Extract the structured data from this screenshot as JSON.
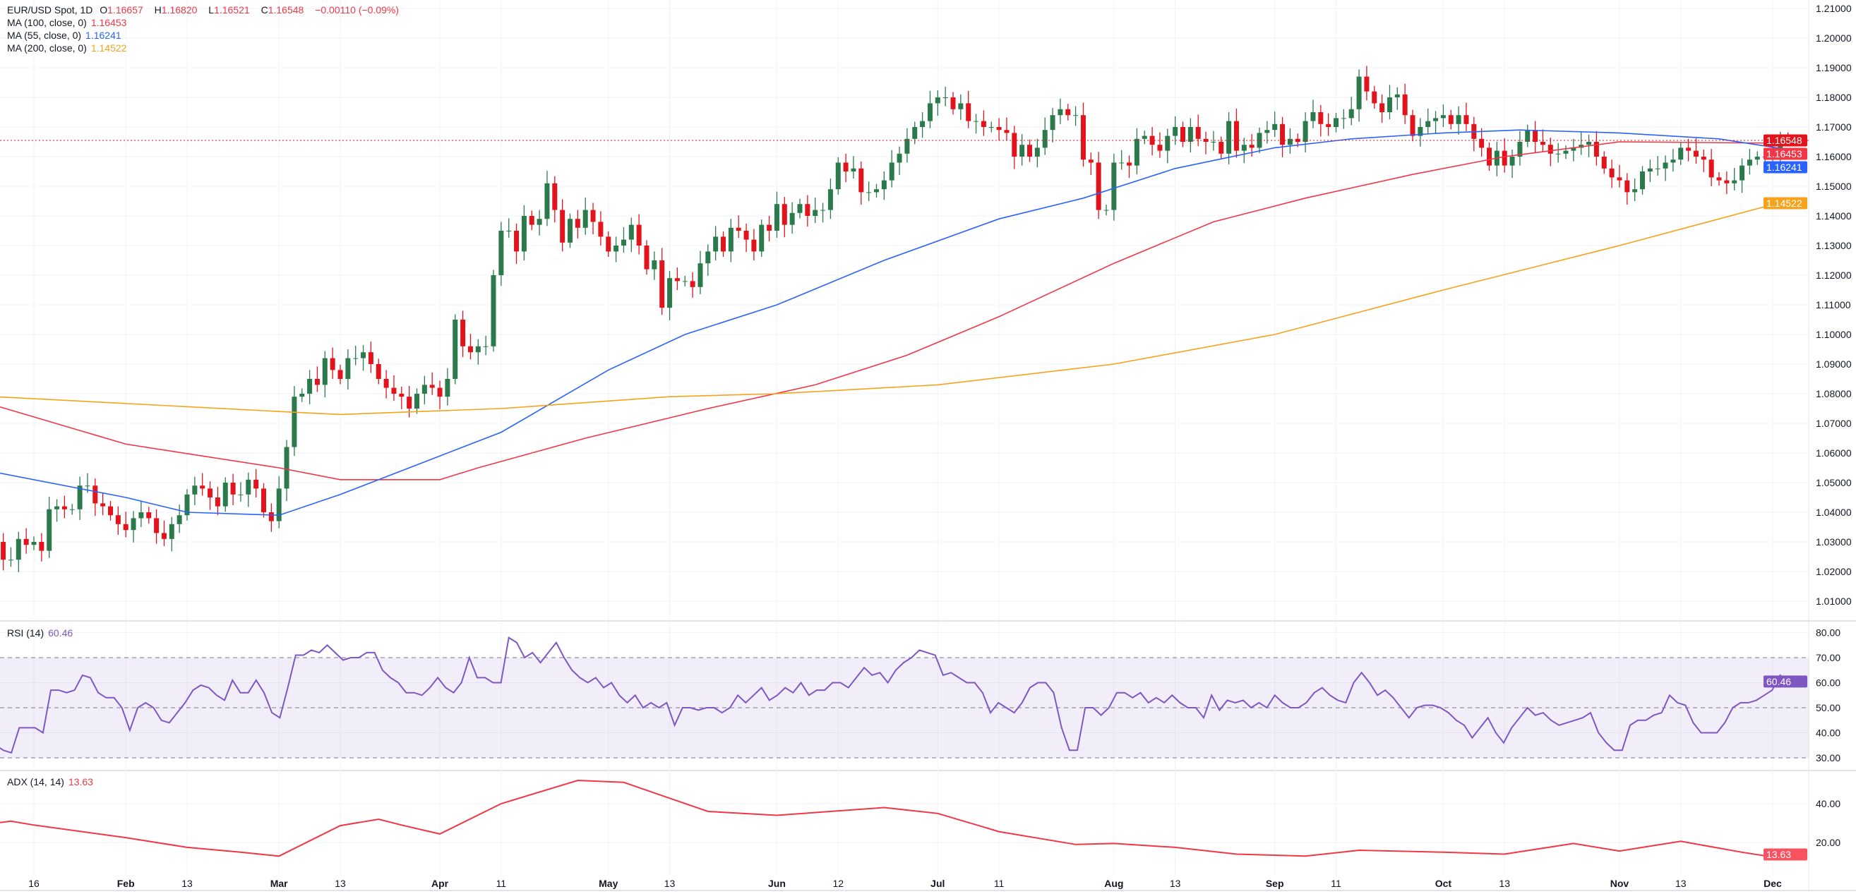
{
  "legend": {
    "symbol": "EUR/USD Spot, 1D",
    "o_label": "O",
    "o": "1.16657",
    "h_label": "H",
    "h": "1.16820",
    "l_label": "L",
    "l": "1.16521",
    "c_label": "C",
    "c": "1.16548",
    "change": "−0.00110 (−0.09%)",
    "ma100_label": "MA (100, close, 0)",
    "ma100": "1.16453",
    "ma55_label": "MA (55, close, 0)",
    "ma55": "1.16241",
    "ma200_label": "MA (200, close, 0)",
    "ma200": "1.14522",
    "rsi_label": "RSI (14)",
    "rsi": "60.46",
    "adx_label": "ADX (14, 14)",
    "adx": "13.63"
  },
  "colors": {
    "up": "#2b7a4b",
    "down": "#e3131b",
    "ma100": "#f23645",
    "ma55": "#2962ff",
    "ma200": "#f7a21b",
    "rsi": "#7e57c2",
    "adx": "#f23645",
    "last": "#e3131b"
  },
  "chart_data": [
    {
      "type": "candlestick",
      "title": "EUR/USD Spot, 1D",
      "start_date": "2025-01-09",
      "last_bar": {
        "open": 1.16657,
        "high": 1.1682,
        "low": 1.16521,
        "close": 1.16548
      },
      "first_open": 1.028,
      "close": [
        1.03,
        1.024,
        1.024,
        1.031,
        1.029,
        1.03,
        1.027,
        1.041,
        1.042,
        1.041,
        1.041,
        1.049,
        1.049,
        1.043,
        1.042,
        1.039,
        1.036,
        1.034,
        1.038,
        1.04,
        1.038,
        1.033,
        1.031,
        1.036,
        1.039,
        1.046,
        1.049,
        1.048,
        1.045,
        1.042,
        1.05,
        1.046,
        1.046,
        1.051,
        1.048,
        1.04,
        1.037,
        1.048,
        1.062,
        1.079,
        1.08,
        1.085,
        1.083,
        1.092,
        1.088,
        1.085,
        1.092,
        1.092,
        1.094,
        1.09,
        1.085,
        1.082,
        1.08,
        1.079,
        1.075,
        1.08,
        1.083,
        1.082,
        1.079,
        1.085,
        1.105,
        1.096,
        1.094,
        1.096,
        1.096,
        1.12,
        1.135,
        1.135,
        1.128,
        1.14,
        1.137,
        1.139,
        1.151,
        1.142,
        1.131,
        1.139,
        1.136,
        1.142,
        1.138,
        1.133,
        1.128,
        1.13,
        1.132,
        1.137,
        1.13,
        1.122,
        1.125,
        1.109,
        1.119,
        1.118,
        1.118,
        1.116,
        1.124,
        1.128,
        1.133,
        1.128,
        1.136,
        1.135,
        1.132,
        1.128,
        1.137,
        1.135,
        1.144,
        1.137,
        1.141,
        1.144,
        1.14,
        1.142,
        1.142,
        1.149,
        1.158,
        1.155,
        1.156,
        1.148,
        1.148,
        1.149,
        1.152,
        1.158,
        1.161,
        1.166,
        1.17,
        1.172,
        1.178,
        1.18,
        1.18,
        1.176,
        1.178,
        1.172,
        1.172,
        1.17,
        1.17,
        1.169,
        1.168,
        1.16,
        1.164,
        1.16,
        1.163,
        1.169,
        1.174,
        1.176,
        1.174,
        1.174,
        1.159,
        1.158,
        1.142,
        1.142,
        1.158,
        1.158,
        1.157,
        1.166,
        1.167,
        1.164,
        1.162,
        1.167,
        1.17,
        1.165,
        1.17,
        1.166,
        1.165,
        1.165,
        1.161,
        1.172,
        1.162,
        1.164,
        1.163,
        1.168,
        1.169,
        1.171,
        1.164,
        1.166,
        1.165,
        1.172,
        1.175,
        1.171,
        1.17,
        1.173,
        1.173,
        1.176,
        1.187,
        1.182,
        1.178,
        1.175,
        1.18,
        1.181,
        1.174,
        1.167,
        1.17,
        1.172,
        1.173,
        1.174,
        1.171,
        1.174,
        1.171,
        1.166,
        1.163,
        1.157,
        1.162,
        1.157,
        1.16,
        1.165,
        1.169,
        1.165,
        1.164,
        1.161,
        1.161,
        1.162,
        1.163,
        1.164,
        1.165,
        1.16,
        1.156,
        1.153,
        1.152,
        1.148,
        1.149,
        1.155,
        1.156,
        1.156,
        1.158,
        1.159,
        1.163,
        1.162,
        1.16,
        1.159,
        1.153,
        1.152,
        1.151,
        1.152,
        1.157,
        1.159,
        1.16,
        1.16,
        1.161,
        1.166,
        1.16548
      ],
      "ma": [
        {
          "name": "MA 100",
          "color_key": "ma100",
          "points": [
            [
              "2025-01-09",
              1.076
            ],
            [
              "2025-02-03",
              1.063
            ],
            [
              "2025-03-03",
              1.055
            ],
            [
              "2025-03-13",
              1.051
            ],
            [
              "2025-04-01",
              1.051
            ],
            [
              "2025-04-08",
              1.055
            ],
            [
              "2025-04-28",
              1.065
            ],
            [
              "2025-05-20",
              1.075
            ],
            [
              "2025-06-09",
              1.083
            ],
            [
              "2025-06-25",
              1.093
            ],
            [
              "2025-07-11",
              1.106
            ],
            [
              "2025-08-01",
              1.124
            ],
            [
              "2025-08-20",
              1.138
            ],
            [
              "2025-09-05",
              1.146
            ],
            [
              "2025-09-25",
              1.154
            ],
            [
              "2025-10-13",
              1.16
            ],
            [
              "2025-11-03",
              1.165
            ],
            [
              "2025-12-03",
              1.16453
            ]
          ]
        },
        {
          "name": "MA 55",
          "color_key": "ma55",
          "points": [
            [
              "2025-01-09",
              1.0535
            ],
            [
              "2025-02-03",
              1.045
            ],
            [
              "2025-02-13",
              1.04
            ],
            [
              "2025-03-03",
              1.039
            ],
            [
              "2025-03-13",
              1.046
            ],
            [
              "2025-04-01",
              1.059
            ],
            [
              "2025-04-11",
              1.067
            ],
            [
              "2025-05-01",
              1.088
            ],
            [
              "2025-05-15",
              1.1
            ],
            [
              "2025-06-02",
              1.11
            ],
            [
              "2025-06-20",
              1.125
            ],
            [
              "2025-07-11",
              1.139
            ],
            [
              "2025-07-28",
              1.146
            ],
            [
              "2025-08-13",
              1.156
            ],
            [
              "2025-09-01",
              1.163
            ],
            [
              "2025-09-15",
              1.166
            ],
            [
              "2025-10-01",
              1.168
            ],
            [
              "2025-10-15",
              1.169
            ],
            [
              "2025-11-03",
              1.168
            ],
            [
              "2025-11-20",
              1.166
            ],
            [
              "2025-12-03",
              1.16241
            ]
          ]
        },
        {
          "name": "MA 200",
          "color_key": "ma200",
          "points": [
            [
              "2025-01-09",
              1.079
            ],
            [
              "2025-03-03",
              1.074
            ],
            [
              "2025-03-13",
              1.073
            ],
            [
              "2025-04-11",
              1.075
            ],
            [
              "2025-05-13",
              1.079
            ],
            [
              "2025-06-02",
              1.08
            ],
            [
              "2025-07-01",
              1.083
            ],
            [
              "2025-08-01",
              1.09
            ],
            [
              "2025-09-01",
              1.1
            ],
            [
              "2025-10-01",
              1.115
            ],
            [
              "2025-11-03",
              1.13
            ],
            [
              "2025-12-03",
              1.14522
            ]
          ]
        }
      ],
      "yticks": [
        1.01,
        1.02,
        1.03,
        1.04,
        1.05,
        1.06,
        1.07,
        1.08,
        1.09,
        1.1,
        1.11,
        1.12,
        1.13,
        1.14,
        1.15,
        1.16,
        1.17,
        1.18,
        1.19,
        1.2,
        1.21
      ],
      "ylim": [
        1.01,
        1.21
      ],
      "badges": [
        {
          "key": "c",
          "color_key": "last",
          "value": 1.16548
        },
        {
          "key": "ma100",
          "color_key": "ma100",
          "value": 1.16453
        },
        {
          "key": "ma55",
          "color_key": "ma55",
          "value": 1.16241
        },
        {
          "key": "ma200",
          "color_key": "ma200",
          "value": 1.14522
        }
      ]
    },
    {
      "type": "line",
      "title": "RSI (14)",
      "ylim": [
        30,
        80
      ],
      "levels": [
        70,
        50,
        30
      ],
      "yticks": [
        "80.00",
        "70.00",
        "60.00",
        "50.00",
        "40.00",
        "30.00"
      ],
      "values": [
        35,
        33,
        32,
        42,
        42,
        42,
        40,
        57,
        57,
        56,
        57,
        63,
        62,
        56,
        54,
        54,
        50,
        41,
        50,
        52,
        50,
        45,
        44,
        48,
        52,
        57,
        59,
        58,
        55,
        53,
        61,
        56,
        56,
        61,
        56,
        48,
        46,
        58,
        71,
        71,
        73,
        72,
        75,
        72,
        69,
        70,
        70,
        72,
        72,
        65,
        62,
        60,
        56,
        56,
        55,
        58,
        62,
        58,
        56,
        60,
        70,
        62,
        62,
        60,
        60,
        78,
        76,
        70,
        72,
        68,
        72,
        76,
        70,
        65,
        62,
        60,
        62,
        58,
        60,
        55,
        52,
        55,
        50,
        52,
        50,
        52,
        43,
        50,
        50,
        49,
        50,
        50,
        48,
        50,
        55,
        52,
        55,
        58,
        53,
        55,
        58,
        56,
        60,
        55,
        57,
        57,
        60,
        60,
        58,
        62,
        66,
        63,
        64,
        60,
        65,
        68,
        70,
        73,
        72,
        71,
        63,
        64,
        62,
        60,
        60,
        56,
        48,
        52,
        50,
        48,
        52,
        58,
        60,
        60,
        56,
        42,
        33,
        33,
        50,
        50,
        47,
        50,
        56,
        56,
        54,
        56,
        52,
        54,
        52,
        55,
        52,
        50,
        50,
        46,
        55,
        49,
        53,
        52,
        53,
        50,
        52,
        50,
        55,
        52,
        50,
        50,
        52,
        56,
        58,
        55,
        53,
        52,
        60,
        64,
        60,
        55,
        57,
        54,
        50,
        46,
        50,
        51,
        51,
        50,
        48,
        45,
        43,
        38,
        42,
        46,
        40,
        36,
        42,
        46,
        50,
        47,
        48,
        45,
        43,
        44,
        45,
        46,
        48,
        40,
        36,
        33,
        33,
        43,
        45,
        45,
        47,
        48,
        55,
        52,
        51,
        44,
        40,
        40,
        40,
        44,
        50,
        52,
        52,
        53,
        55,
        57,
        63,
        60.46
      ]
    },
    {
      "type": "line",
      "title": "ADX (14, 14)",
      "ylim": [
        0,
        60
      ],
      "yticks": [
        "40.00",
        "20.00"
      ],
      "points": [
        [
          "2025-01-09",
          30
        ],
        [
          "2025-01-13",
          31
        ],
        [
          "2025-01-16",
          29
        ],
        [
          "2025-02-03",
          22.5
        ],
        [
          "2025-02-13",
          17.5
        ],
        [
          "2025-02-24",
          15
        ],
        [
          "2025-03-03",
          13
        ],
        [
          "2025-03-13",
          28.7
        ],
        [
          "2025-03-20",
          32
        ],
        [
          "2025-03-25",
          29
        ],
        [
          "2025-04-01",
          24.4
        ],
        [
          "2025-04-11",
          40
        ],
        [
          "2025-04-25",
          52
        ],
        [
          "2025-05-05",
          51
        ],
        [
          "2025-05-20",
          36
        ],
        [
          "2025-06-02",
          34
        ],
        [
          "2025-06-20",
          38
        ],
        [
          "2025-07-01",
          35
        ],
        [
          "2025-07-11",
          25.6
        ],
        [
          "2025-07-25",
          19
        ],
        [
          "2025-08-01",
          19.5
        ],
        [
          "2025-08-13",
          17.5
        ],
        [
          "2025-08-25",
          14
        ],
        [
          "2025-09-05",
          13
        ],
        [
          "2025-09-16",
          16
        ],
        [
          "2025-10-01",
          15
        ],
        [
          "2025-10-13",
          14
        ],
        [
          "2025-10-24",
          19.5
        ],
        [
          "2025-11-03",
          15.6
        ],
        [
          "2025-11-13",
          20.6
        ],
        [
          "2025-11-25",
          15
        ],
        [
          "2025-12-01",
          12.5
        ],
        [
          "2025-12-03",
          13.63
        ]
      ]
    },
    {
      "type": "time-axis",
      "ticks": [
        [
          "2025-01-16",
          "16",
          false
        ],
        [
          "2025-02-03",
          "Feb",
          true
        ],
        [
          "2025-02-13",
          "13",
          false
        ],
        [
          "2025-03-03",
          "Mar",
          true
        ],
        [
          "2025-03-13",
          "13",
          false
        ],
        [
          "2025-04-01",
          "Apr",
          true
        ],
        [
          "2025-04-11",
          "11",
          false
        ],
        [
          "2025-05-01",
          "May",
          true
        ],
        [
          "2025-05-13",
          "13",
          false
        ],
        [
          "2025-06-02",
          "Jun",
          true
        ],
        [
          "2025-06-12",
          "12",
          false
        ],
        [
          "2025-07-01",
          "Jul",
          true
        ],
        [
          "2025-07-11",
          "11",
          false
        ],
        [
          "2025-08-01",
          "Aug",
          true
        ],
        [
          "2025-08-13",
          "13",
          false
        ],
        [
          "2025-09-01",
          "Sep",
          true
        ],
        [
          "2025-09-11",
          "11",
          false
        ],
        [
          "2025-10-01",
          "Oct",
          true
        ],
        [
          "2025-10-13",
          "13",
          false
        ],
        [
          "2025-11-03",
          "Nov",
          true
        ],
        [
          "2025-11-13",
          "13",
          false
        ],
        [
          "2025-12-01",
          "Dec",
          true
        ]
      ]
    }
  ]
}
